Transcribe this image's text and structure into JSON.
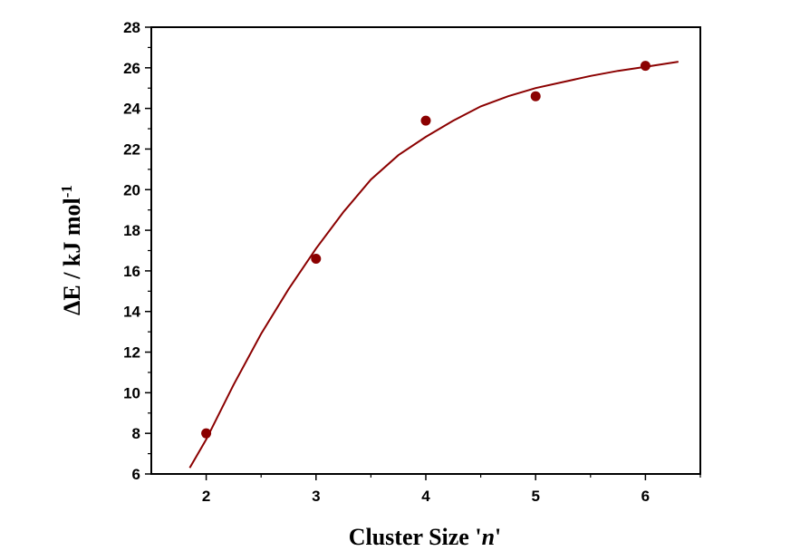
{
  "chart_data": {
    "type": "scatter",
    "title": "",
    "xlabel": "Cluster Size 'n'",
    "ylabel": "ΔE / kJ mol-1",
    "ylabel_main": "ΔE / kJ mol",
    "ylabel_sup": "-1",
    "xlim": [
      1.5,
      6.5
    ],
    "ylim": [
      6,
      28
    ],
    "xticks": [
      2,
      3,
      4,
      5,
      6
    ],
    "yticks": [
      6,
      8,
      10,
      12,
      14,
      16,
      18,
      20,
      22,
      24,
      26,
      28
    ],
    "grid": false,
    "legend": "none",
    "series": [
      {
        "kind": "points",
        "color": "#8b0000",
        "x": [
          2,
          3,
          4,
          5,
          6
        ],
        "y": [
          8.0,
          16.6,
          23.4,
          24.6,
          26.1
        ]
      },
      {
        "kind": "fit-line",
        "color": "#8b0000",
        "x": [
          1.85,
          2.0,
          2.25,
          2.5,
          2.75,
          3.0,
          3.25,
          3.5,
          3.75,
          4.0,
          4.25,
          4.5,
          4.75,
          5.0,
          5.25,
          5.5,
          5.75,
          6.0,
          6.3
        ],
        "y": [
          6.3,
          7.7,
          10.4,
          12.9,
          15.1,
          17.1,
          18.9,
          20.5,
          21.7,
          22.6,
          23.4,
          24.1,
          24.6,
          25.0,
          25.3,
          25.6,
          25.85,
          26.05,
          26.3
        ]
      }
    ]
  }
}
